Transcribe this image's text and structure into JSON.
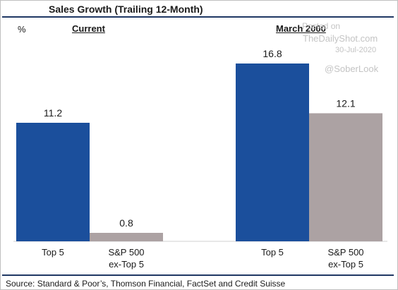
{
  "chart_data": {
    "type": "bar",
    "title": "Sales Growth (Trailing 12-Month)",
    "ylabel": "%",
    "groups": [
      {
        "name": "Current",
        "categories": [
          "Top 5",
          "S&P 500 ex-Top 5"
        ],
        "values": [
          11.2,
          0.8
        ]
      },
      {
        "name": "March 2000",
        "categories": [
          "Top 5",
          "S&P 500 ex-Top 5"
        ],
        "values": [
          16.8,
          12.1
        ]
      }
    ],
    "series": [
      {
        "name": "Top 5",
        "color": "#1b4f9c"
      },
      {
        "name": "S&P 500 ex-Top 5",
        "color": "#aca2a3"
      }
    ],
    "value_labels": [
      "11.2",
      "0.8",
      "16.8",
      "12.1"
    ],
    "x_labels": [
      [
        "Top 5"
      ],
      [
        "S&P 500",
        "ex-Top 5"
      ],
      [
        "Top 5"
      ],
      [
        "S&P 500",
        "ex-Top 5"
      ]
    ],
    "ylim": [
      0,
      18
    ],
    "grid": false,
    "legend": "none"
  },
  "watermark": {
    "posted_on": "Posted on",
    "site": "TheDailyShot.com",
    "date": "30-Jul-2020",
    "handle": "@SoberLook"
  },
  "source": "Source: Standard & Poor’s, Thomson Financial, FactSet and Credit Suisse"
}
